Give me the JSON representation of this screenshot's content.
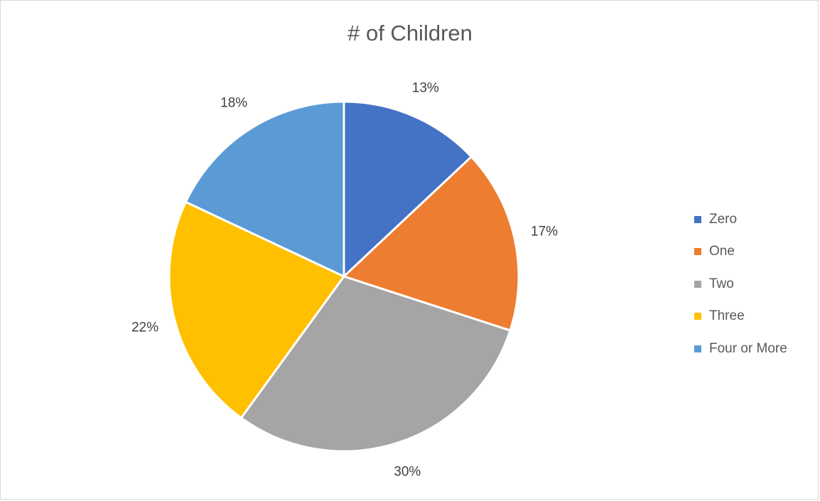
{
  "chart_data": {
    "type": "pie",
    "title": "# of Children",
    "categories": [
      "Zero",
      "One",
      "Two",
      "Three",
      "Four or More"
    ],
    "values": [
      13,
      17,
      30,
      22,
      18
    ],
    "labels": [
      "13%",
      "17%",
      "30%",
      "22%",
      "18%"
    ],
    "colors": [
      "#4472c4",
      "#ed7d31",
      "#a5a5a5",
      "#ffc000",
      "#5b9bd5"
    ],
    "legend_position": "right"
  }
}
